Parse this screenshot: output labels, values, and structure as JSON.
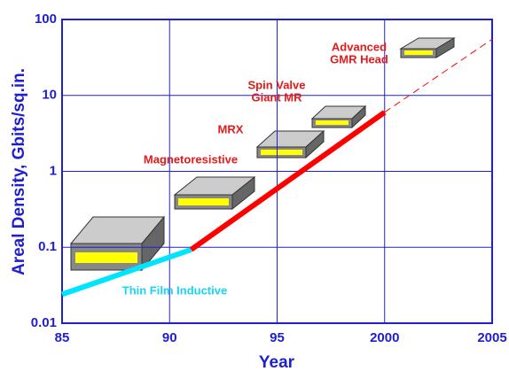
{
  "chart_data": {
    "type": "line",
    "y_title": "Areal Density, Gbits/sq.in.",
    "x_title": "Year",
    "xlim": [
      1985,
      2005
    ],
    "xticks": [
      {
        "value": 1985,
        "label": "85"
      },
      {
        "value": 1990,
        "label": "90"
      },
      {
        "value": 1995,
        "label": "95"
      },
      2000,
      2005
    ],
    "ylim": [
      0.01,
      100
    ],
    "yticks": [
      0.01,
      0.1,
      1,
      10,
      100
    ],
    "log_y": true,
    "grid": true,
    "series": [
      {
        "name": "Thin Film Inductive",
        "color": "#00e5ff",
        "x": [
          1985,
          1991
        ],
        "values": [
          0.024,
          0.093
        ]
      },
      {
        "color": "#ff0000",
        "x": [
          1991,
          2000
        ],
        "values": [
          0.093,
          6
        ]
      },
      {
        "color": "#ff0000",
        "dashed": true,
        "x": [
          2000,
          2005
        ],
        "values": [
          6,
          55
        ]
      }
    ],
    "annotations": [
      "Magnetoresistive",
      "MRX",
      "Spin Valve",
      "Giant MR",
      "Advanced",
      "GMR Head"
    ]
  }
}
